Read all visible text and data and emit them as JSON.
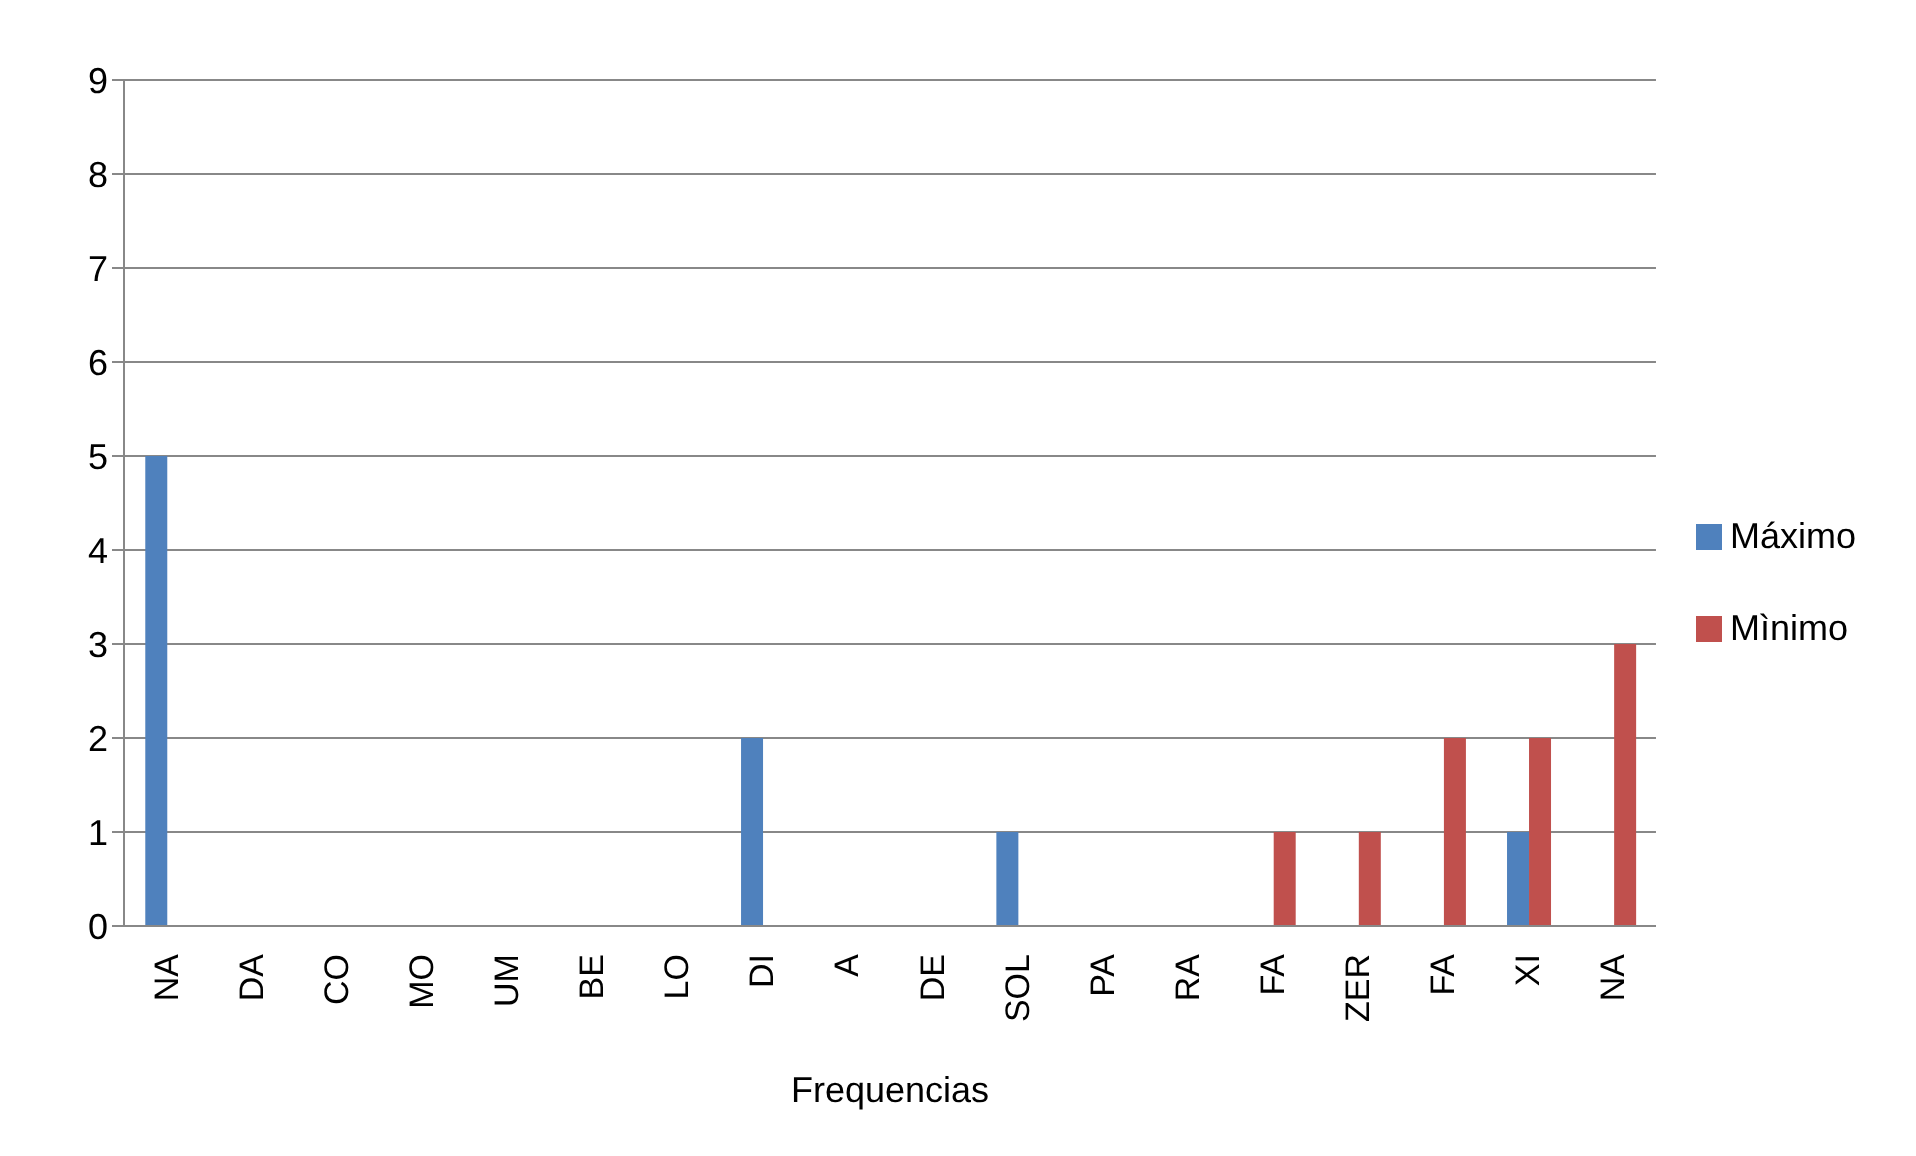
{
  "chart_data": {
    "type": "bar",
    "xlabel": "Frequencias",
    "categories": [
      "NA",
      "DA",
      "CO",
      "MO",
      "UM",
      "BE",
      "LO",
      "DI",
      "A",
      "DE",
      "SOL",
      "PA",
      "RA",
      "FA",
      "ZER",
      "FA",
      "XI",
      "NA"
    ],
    "series": [
      {
        "name": "Máximo",
        "color": "#4f81bd",
        "values": [
          5,
          0,
          0,
          0,
          0,
          0,
          0,
          2,
          0,
          0,
          1,
          0,
          0,
          0,
          0,
          0,
          1,
          0
        ]
      },
      {
        "name": "Mìnimo",
        "color": "#c0504d",
        "values": [
          0,
          0,
          0,
          0,
          0,
          0,
          0,
          0,
          0,
          0,
          0,
          0,
          0,
          1,
          1,
          2,
          2,
          3
        ]
      }
    ],
    "ylim": [
      0,
      9
    ],
    "yticks": [
      0,
      1,
      2,
      3,
      4,
      5,
      6,
      7,
      8,
      9
    ],
    "grid": "y",
    "legend": "right"
  }
}
